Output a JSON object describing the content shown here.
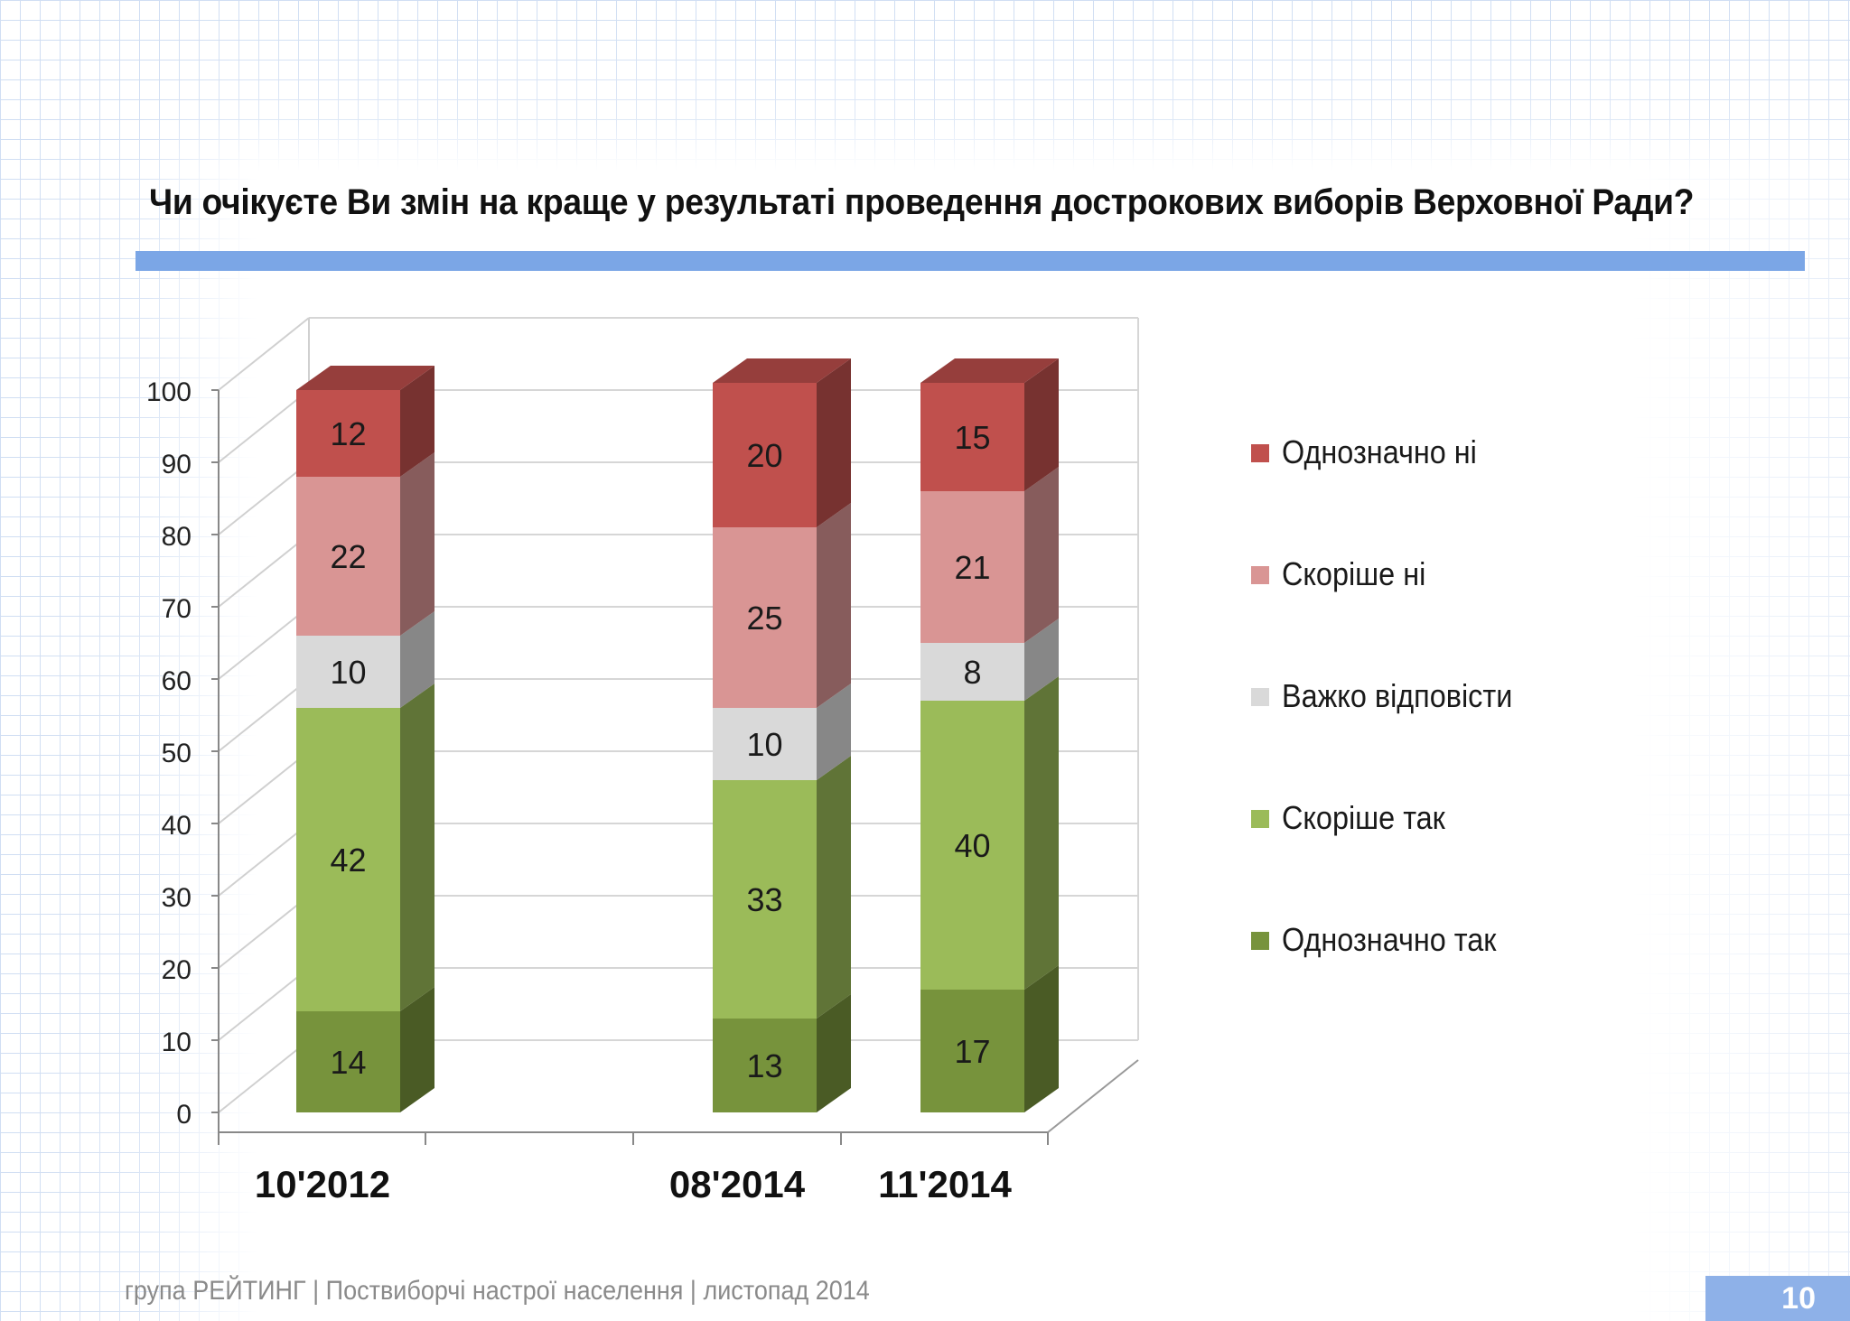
{
  "slide": {
    "title": "Чи очікуєте Ви змін на краще у результаті проведення дострокових виборів Верховної Ради?",
    "footer": "група РЕЙТИНГ  |  Поствиборчі настрої населення  |  листопад 2014",
    "page_number": "10",
    "accent_color": "#7ba6e6"
  },
  "chart_data": {
    "type": "bar",
    "stacked": true,
    "categories": [
      "10'2012",
      "08'2014",
      "11'2014"
    ],
    "ylim": [
      0,
      100
    ],
    "yticks": [
      "0",
      "10",
      "20",
      "30",
      "40",
      "50",
      "60",
      "70",
      "80",
      "90",
      "100"
    ],
    "legend_position": "right",
    "grid": true,
    "series": [
      {
        "name": "Однозначно так",
        "color": "#77933c",
        "values": [
          14,
          13,
          17
        ],
        "labels": [
          "14",
          "13",
          "17"
        ]
      },
      {
        "name": "Скоріше так",
        "color": "#9bbb59",
        "values": [
          42,
          33,
          40
        ],
        "labels": [
          "42",
          "33",
          "40"
        ]
      },
      {
        "name": "Важко відповісти",
        "color": "#d9d9d9",
        "values": [
          10,
          10,
          8
        ],
        "labels": [
          "10",
          "10",
          "8"
        ]
      },
      {
        "name": "Скоріше ні",
        "color": "#d99594",
        "values": [
          22,
          25,
          21
        ],
        "labels": [
          "22",
          "25",
          "21"
        ]
      },
      {
        "name": "Однозначно ні",
        "color": "#c0504d",
        "values": [
          12,
          20,
          15
        ],
        "labels": [
          "12",
          "20",
          "15"
        ]
      }
    ]
  }
}
